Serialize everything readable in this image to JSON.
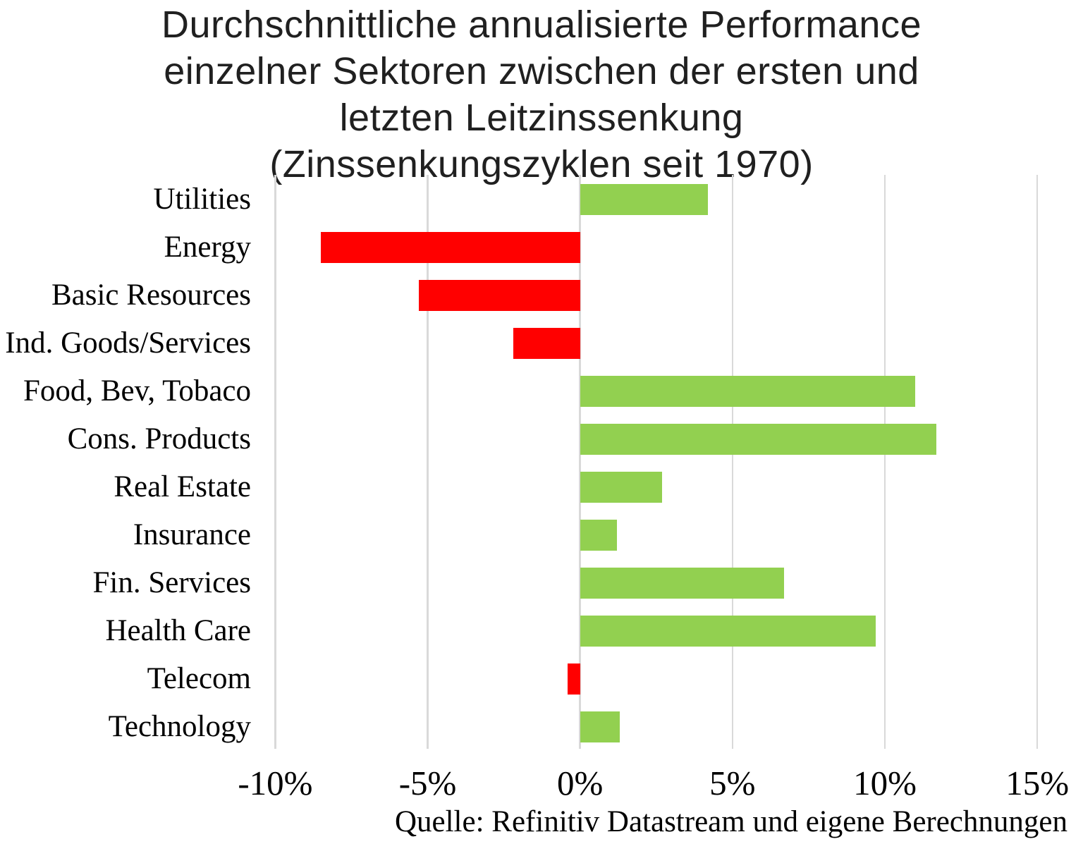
{
  "title_lines": [
    "Durchschnittliche annualisierte Performance",
    "einzelner Sektoren zwischen der ersten und",
    "letzten Leitzinssenkung",
    "(Zinssenkungszyklen seit 1970)"
  ],
  "source_credit": "Quelle: Refinitiv Datastream und eigene Berechnungen",
  "chart_data": {
    "type": "bar",
    "orientation": "horizontal",
    "title": "Durchschnittliche annualisierte Performance einzelner Sektoren zwischen der ersten und letzten Leitzinssenkung (Zinssenkungszyklen seit 1970)",
    "categories": [
      "Utilities",
      "Energy",
      "Basic Resources",
      "Ind. Goods/Services",
      "Food, Bev, Tobaco",
      "Cons. Products",
      "Real Estate",
      "Insurance",
      "Fin. Services",
      "Health Care",
      "Telecom",
      "Technology"
    ],
    "values": [
      4.2,
      -8.5,
      -5.3,
      -2.2,
      11.0,
      11.7,
      2.7,
      1.2,
      6.7,
      9.7,
      -0.4,
      1.3
    ],
    "unit": "%",
    "xlabel": "",
    "ylabel": "",
    "xlim": [
      -10,
      15
    ],
    "xticks": [
      {
        "value": -10,
        "label": "-10%"
      },
      {
        "value": -5,
        "label": "-5%"
      },
      {
        "value": 0,
        "label": "0%"
      },
      {
        "value": 5,
        "label": "5%"
      },
      {
        "value": 10,
        "label": "10%"
      },
      {
        "value": 15,
        "label": "15%"
      }
    ],
    "grid": true,
    "legend": false,
    "value_labels": false,
    "colors": {
      "positive_bar": "#92D050",
      "negative_bar": "#FF0000",
      "gridline": "#D9D9D9",
      "text": "#000000"
    },
    "source": "Quelle: Refinitiv Datastream und eigene Berechnungen"
  }
}
